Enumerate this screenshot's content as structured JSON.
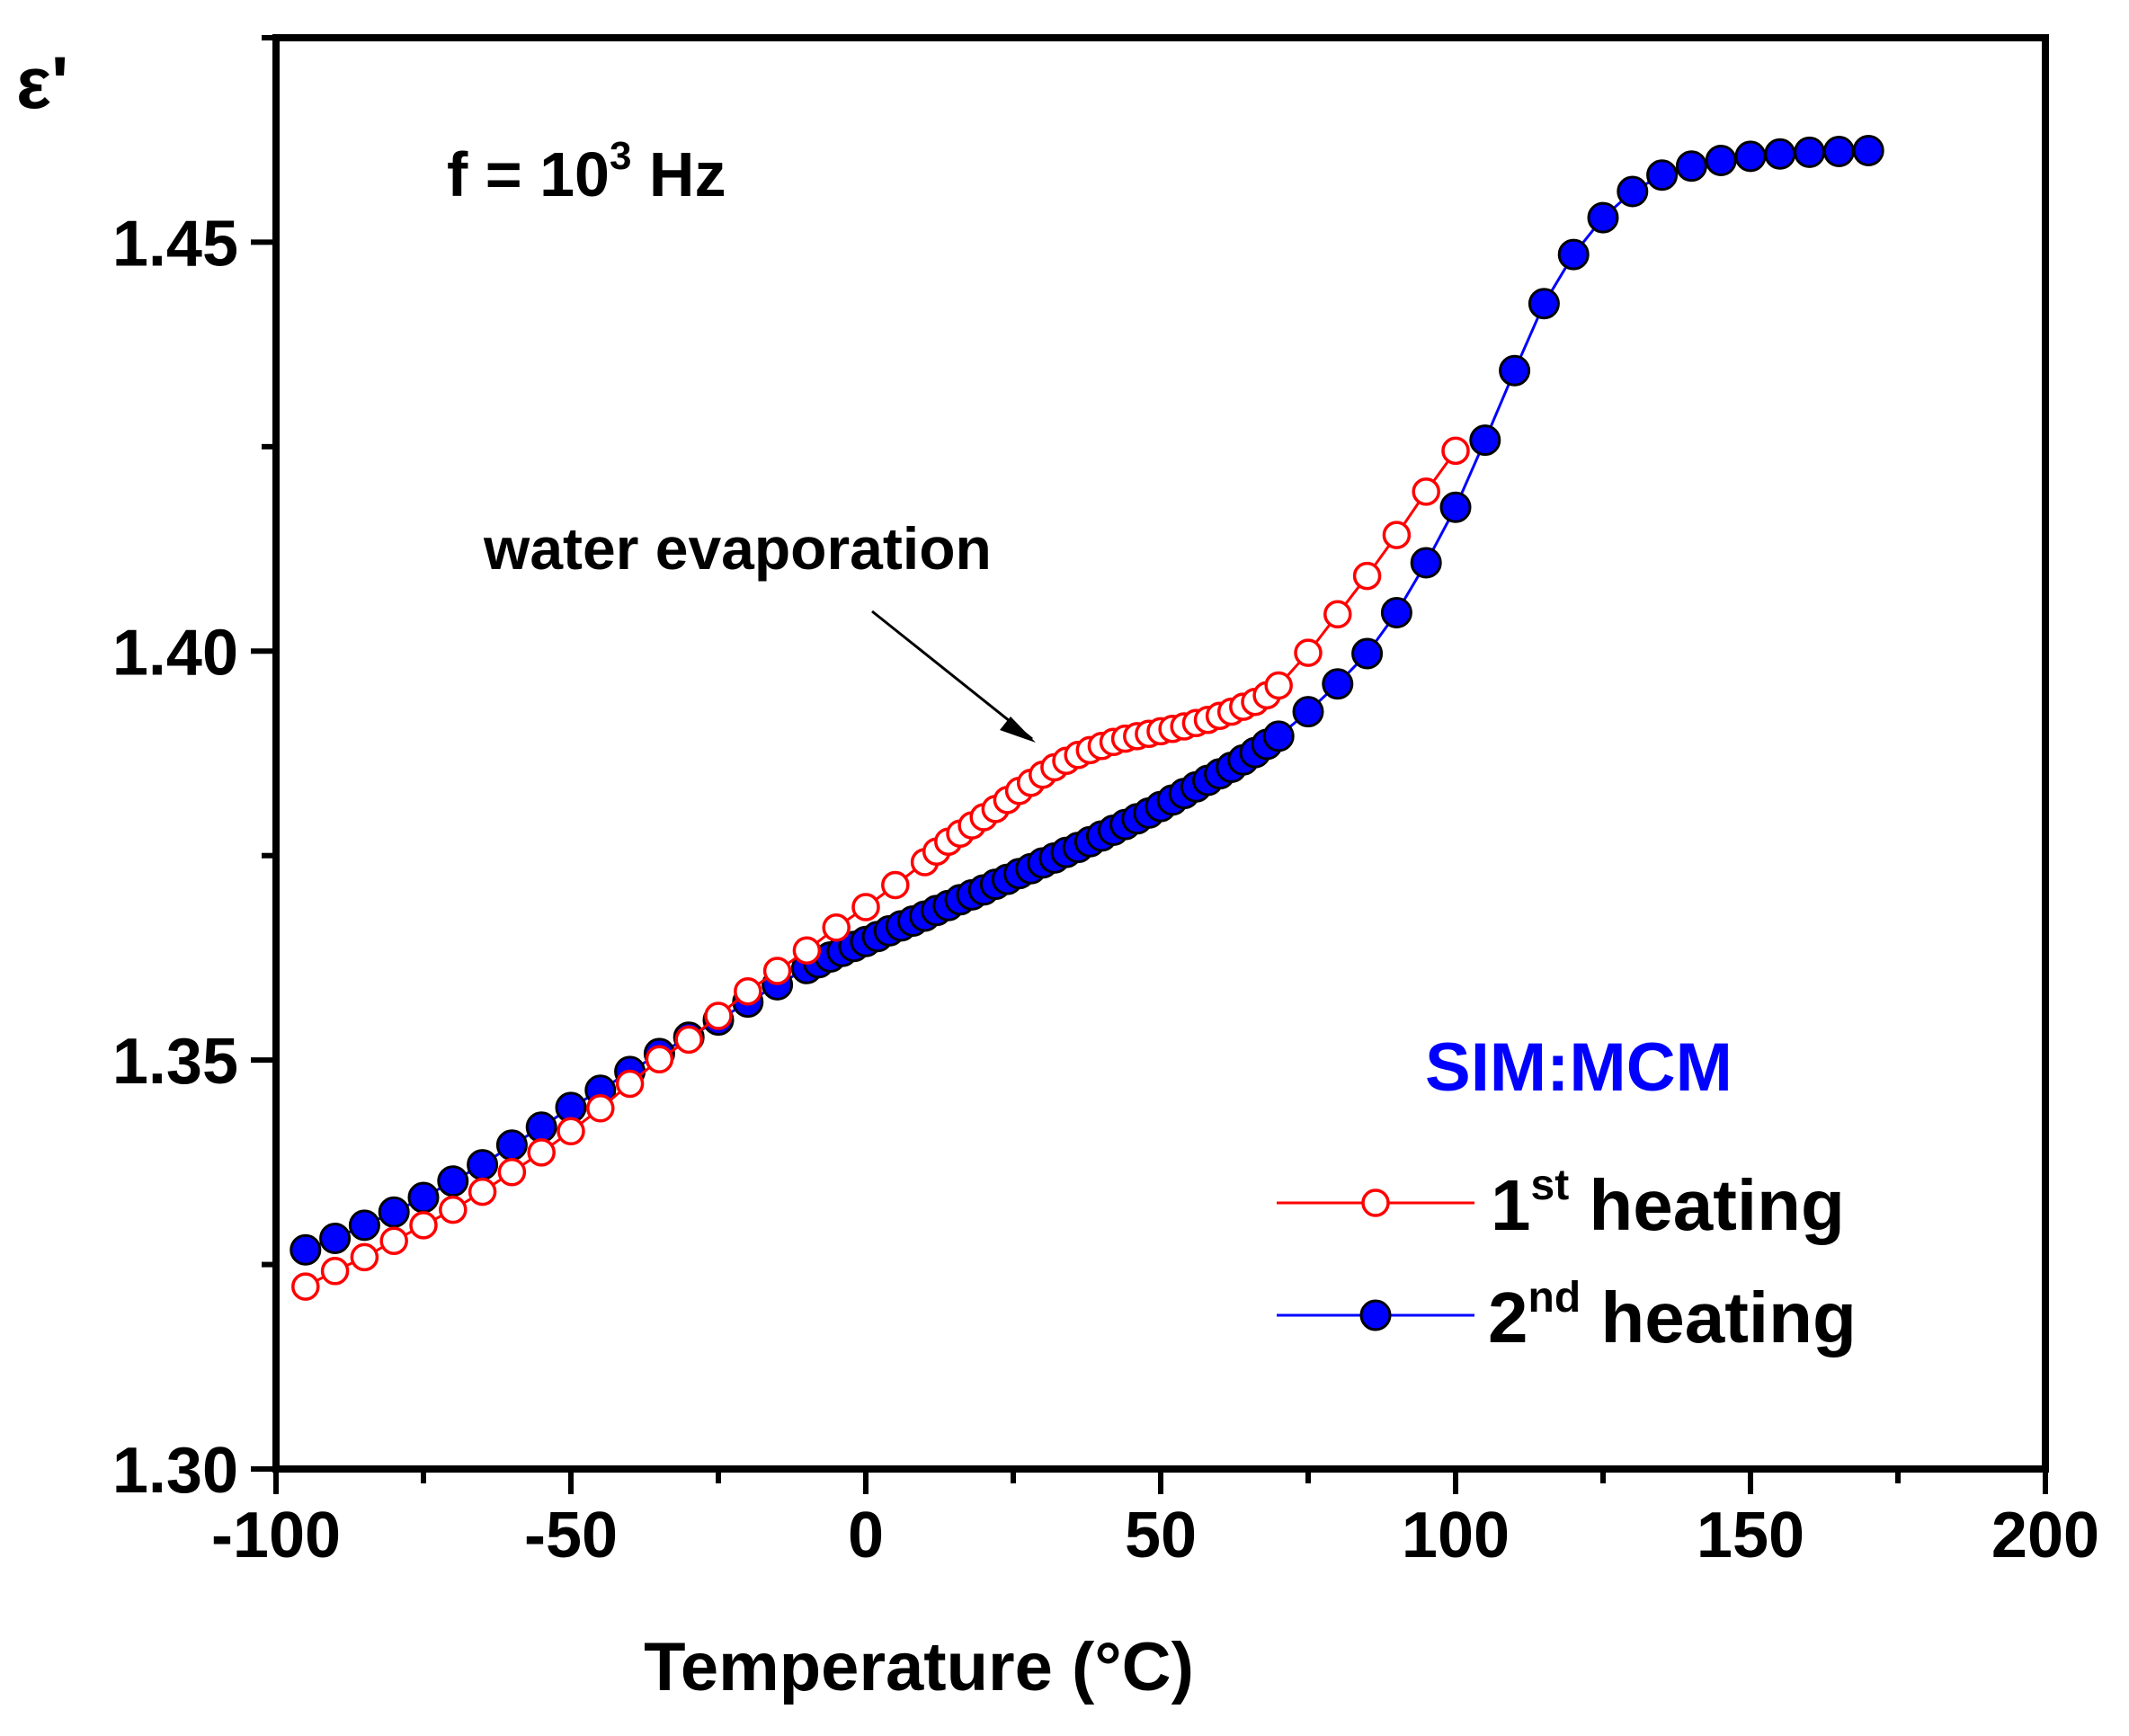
{
  "chart_data": {
    "type": "line",
    "title": "",
    "xlabel": "Temperature (°C)",
    "ylabel": "ε'",
    "xlim": [
      -100,
      200
    ],
    "ylim": [
      1.3,
      1.475
    ],
    "x_ticks": [
      -100,
      -50,
      0,
      50,
      100,
      150,
      200
    ],
    "x_tick_labels": [
      "-100",
      "-50",
      "0",
      "50",
      "100",
      "150",
      "200"
    ],
    "y_ticks": [
      1.3,
      1.35,
      1.4,
      1.45
    ],
    "y_tick_labels": [
      "1.30",
      "1.35",
      "1.40",
      "1.45"
    ],
    "grid": false,
    "legend_position": "bottom-right",
    "legend_title": "SIM:MCM",
    "annotations": {
      "frequency": {
        "prefix": "f = 10",
        "sup": "3",
        "suffix": " Hz"
      },
      "arrow_label": "water evaporation"
    },
    "series": [
      {
        "name": "1st heating",
        "name_base": "1",
        "name_sup": "st",
        "name_rest": " heating",
        "color": "#ff0000",
        "marker": "open-circle",
        "x": [
          -95,
          -90,
          -85,
          -80,
          -75,
          -70,
          -65,
          -60,
          -55,
          -50,
          -45,
          -40,
          -35,
          -30,
          -25,
          -20,
          -15,
          -10,
          -5,
          0,
          5,
          10,
          12,
          14,
          16,
          18,
          20,
          22,
          24,
          26,
          28,
          30,
          32,
          34,
          36,
          38,
          40,
          42,
          44,
          46,
          48,
          50,
          52,
          54,
          56,
          58,
          60,
          62,
          64,
          66,
          68,
          70,
          75,
          80,
          85,
          90,
          95,
          100
        ],
        "y": [
          1.3223,
          1.3242,
          1.3259,
          1.3279,
          1.3298,
          1.3317,
          1.3339,
          1.3363,
          1.3387,
          1.3413,
          1.3441,
          1.3471,
          1.3501,
          1.3525,
          1.3554,
          1.3584,
          1.3609,
          1.3634,
          1.3662,
          1.3687,
          1.3714,
          1.3742,
          1.3755,
          1.3767,
          1.3777,
          1.3787,
          1.3797,
          1.3807,
          1.3818,
          1.3829,
          1.3839,
          1.3849,
          1.3858,
          1.3866,
          1.3873,
          1.3879,
          1.3884,
          1.3889,
          1.3893,
          1.3896,
          1.3899,
          1.3902,
          1.3905,
          1.3908,
          1.3912,
          1.3916,
          1.3921,
          1.3926,
          1.3932,
          1.3938,
          1.3946,
          1.3958,
          1.3998,
          1.4045,
          1.4092,
          1.4142,
          1.4195,
          1.4245
        ]
      },
      {
        "name": "2nd heating",
        "name_base": "2",
        "name_sup": "nd",
        "name_rest": " heating",
        "color": "#0000ff",
        "marker": "filled-circle",
        "x": [
          -95,
          -90,
          -85,
          -80,
          -75,
          -70,
          -65,
          -60,
          -55,
          -50,
          -45,
          -40,
          -35,
          -30,
          -25,
          -20,
          -15,
          -10,
          -8,
          -6,
          -4,
          -2,
          0,
          2,
          4,
          6,
          8,
          10,
          12,
          14,
          16,
          18,
          20,
          22,
          24,
          26,
          28,
          30,
          32,
          34,
          36,
          38,
          40,
          42,
          44,
          46,
          48,
          50,
          52,
          54,
          56,
          58,
          60,
          62,
          64,
          66,
          68,
          70,
          75,
          80,
          85,
          90,
          95,
          100,
          105,
          110,
          115,
          120,
          125,
          130,
          135,
          140,
          145,
          150,
          155,
          160,
          165,
          170
        ],
        "y": [
          1.3268,
          1.3282,
          1.3298,
          1.3314,
          1.3332,
          1.3352,
          1.3372,
          1.3396,
          1.3418,
          1.3442,
          1.3463,
          1.3486,
          1.3508,
          1.3528,
          1.3549,
          1.3571,
          1.3592,
          1.3612,
          1.3619,
          1.3626,
          1.3633,
          1.3639,
          1.3645,
          1.3651,
          1.3658,
          1.3664,
          1.367,
          1.3676,
          1.3683,
          1.3689,
          1.3696,
          1.3702,
          1.3708,
          1.3715,
          1.3721,
          1.3728,
          1.3734,
          1.3741,
          1.3747,
          1.3754,
          1.376,
          1.3767,
          1.3774,
          1.3781,
          1.3788,
          1.3795,
          1.3802,
          1.381,
          1.3818,
          1.3826,
          1.3834,
          1.3842,
          1.385,
          1.3858,
          1.3867,
          1.3876,
          1.3886,
          1.3896,
          1.3926,
          1.396,
          1.3997,
          1.4047,
          1.4108,
          1.4176,
          1.4258,
          1.4343,
          1.4425,
          1.4485,
          1.453,
          1.4562,
          1.4582,
          1.4593,
          1.46,
          1.4605,
          1.4608,
          1.461,
          1.4611,
          1.4612
        ]
      }
    ]
  }
}
